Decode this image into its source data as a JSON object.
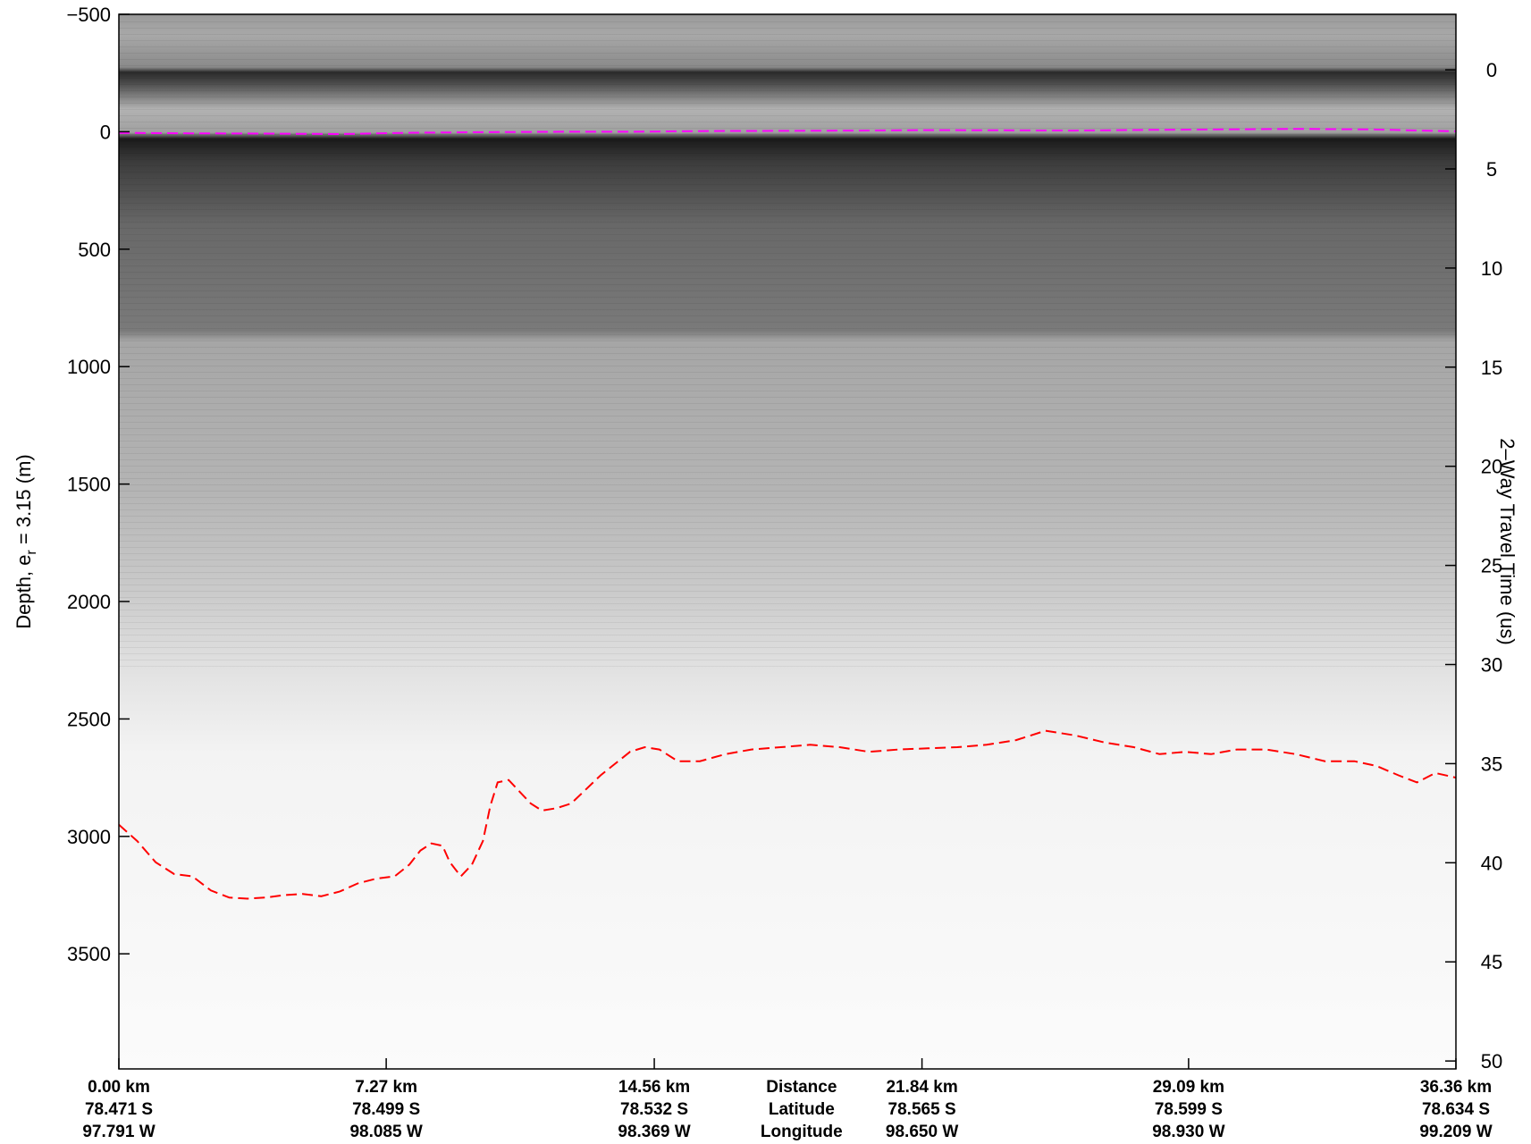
{
  "chart_data": {
    "type": "radargram",
    "title": "",
    "ylabel_left": "Depth, e_r = 3.15 (m)",
    "ylabel_left_main": "Depth, e",
    "ylabel_left_sub": "r",
    "ylabel_left_tail": " = 3.15 (m)",
    "ylabel_right": "2–Way Travel Time (us)",
    "ylim_depth": [
      -500,
      3990
    ],
    "ylim_time": [
      -2.8,
      50.4
    ],
    "depth_ticks": [
      -500,
      0,
      500,
      1000,
      1500,
      2000,
      2500,
      3000,
      3500
    ],
    "depth_tick_labels": [
      "−500",
      "0",
      "500",
      "1000",
      "1500",
      "2000",
      "2500",
      "3000",
      "3500"
    ],
    "time_ticks": [
      0,
      5,
      10,
      15,
      20,
      25,
      30,
      35,
      40,
      45,
      50
    ],
    "time_tick_labels": [
      "0",
      "5",
      "10",
      "15",
      "20",
      "25",
      "30",
      "35",
      "40",
      "45",
      "50"
    ],
    "xlim_km": [
      0,
      36.36
    ],
    "x_ticks_km": [
      0,
      7.27,
      14.56,
      21.84,
      29.09,
      36.36
    ],
    "footer_columns": [
      {
        "distance": "0.00 km",
        "latitude": "78.471 S",
        "longitude": "97.791 W"
      },
      {
        "distance": "7.27 km",
        "latitude": "78.499 S",
        "longitude": "98.085 W"
      },
      {
        "distance": "14.56 km",
        "latitude": "78.532 S",
        "longitude": "98.369 W"
      },
      {
        "distance": "21.84 km",
        "latitude": "78.565 S",
        "longitude": "98.650 W"
      },
      {
        "distance": "29.09 km",
        "latitude": "78.599 S",
        "longitude": "98.930 W"
      },
      {
        "distance": "36.36 km",
        "latitude": "78.634 S",
        "longitude": "99.209 W"
      }
    ],
    "footer_row_labels": {
      "distance": "Distance",
      "latitude": "Latitude",
      "longitude": "Longitude"
    },
    "series": [
      {
        "role": "surface",
        "color": "#ff00ff",
        "style": "dashed",
        "x_km": [
          0,
          2,
          4,
          6,
          8,
          10,
          12,
          14,
          16,
          18,
          20,
          22,
          24,
          26,
          28,
          30,
          32,
          34,
          36.36
        ],
        "depth_m": [
          5,
          7,
          8,
          10,
          4,
          2,
          0,
          0,
          -3,
          -4,
          -5,
          -7,
          -6,
          -5,
          -8,
          -10,
          -12,
          -10,
          -2
        ]
      },
      {
        "role": "bed",
        "color": "#ff0000",
        "style": "dashed",
        "x_km": [
          0,
          0.5,
          1.0,
          1.5,
          2.0,
          2.5,
          3.0,
          3.5,
          4.0,
          4.5,
          5.0,
          5.5,
          6.0,
          6.5,
          7.0,
          7.5,
          7.9,
          8.2,
          8.5,
          8.8,
          9.0,
          9.3,
          9.6,
          9.9,
          10.1,
          10.3,
          10.6,
          10.9,
          11.2,
          11.5,
          11.9,
          12.3,
          12.7,
          13.1,
          13.5,
          13.9,
          14.3,
          14.7,
          15.2,
          15.8,
          16.5,
          17.2,
          18.0,
          18.8,
          19.6,
          20.4,
          21.2,
          22.0,
          22.8,
          23.6,
          24.4,
          25.2,
          26.0,
          26.8,
          27.6,
          28.3,
          29.0,
          29.7,
          30.4,
          31.2,
          32.0,
          32.8,
          33.6,
          34.2,
          34.8,
          35.3,
          35.8,
          36.36
        ],
        "depth_m": [
          2950,
          3020,
          3110,
          3160,
          3170,
          3230,
          3260,
          3265,
          3260,
          3250,
          3245,
          3255,
          3235,
          3200,
          3180,
          3170,
          3120,
          3060,
          3030,
          3040,
          3110,
          3170,
          3120,
          3020,
          2870,
          2770,
          2760,
          2810,
          2860,
          2890,
          2880,
          2860,
          2800,
          2740,
          2690,
          2640,
          2620,
          2630,
          2680,
          2680,
          2650,
          2630,
          2620,
          2610,
          2620,
          2640,
          2630,
          2625,
          2620,
          2610,
          2590,
          2550,
          2570,
          2600,
          2620,
          2650,
          2640,
          2650,
          2630,
          2630,
          2650,
          2680,
          2680,
          2700,
          2740,
          2770,
          2730,
          2750
        ]
      }
    ],
    "colormap": "gray",
    "grid": false,
    "legend": "none"
  }
}
